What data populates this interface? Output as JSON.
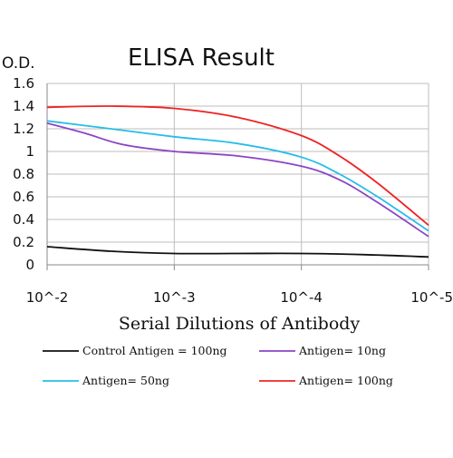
{
  "chart_data": {
    "type": "line",
    "title": "ELISA Result",
    "ylabel": "O.D.",
    "xlabel": "Serial Dilutions of Antibody",
    "x_categories": [
      "10^-2",
      "10^-3",
      "10^-4",
      "10^-5"
    ],
    "y_ticks": [
      "0",
      "0.2",
      "0.4",
      "0.6",
      "0.8",
      "1",
      "1.2",
      "1.4",
      "1.6"
    ],
    "ylim": [
      0,
      1.6
    ],
    "grid": true,
    "legend_position": "bottom",
    "series": [
      {
        "name": "Control Antigen = 100ng",
        "color": "#111111",
        "points": [
          [
            0,
            0.16
          ],
          [
            0.5,
            0.12
          ],
          [
            1,
            0.1
          ],
          [
            1.5,
            0.1
          ],
          [
            2,
            0.1
          ],
          [
            2.5,
            0.09
          ],
          [
            3,
            0.07
          ]
        ]
      },
      {
        "name": "Antigen= 10ng",
        "color": "#8c44c4",
        "points": [
          [
            0,
            1.25
          ],
          [
            0.3,
            1.16
          ],
          [
            0.6,
            1.06
          ],
          [
            1,
            1.0
          ],
          [
            1.5,
            0.96
          ],
          [
            2,
            0.87
          ],
          [
            2.3,
            0.75
          ],
          [
            2.6,
            0.55
          ],
          [
            3,
            0.25
          ]
        ]
      },
      {
        "name": "Antigen= 50ng",
        "color": "#27bde8",
        "points": [
          [
            0,
            1.27
          ],
          [
            0.5,
            1.2
          ],
          [
            1,
            1.13
          ],
          [
            1.5,
            1.07
          ],
          [
            2,
            0.95
          ],
          [
            2.3,
            0.8
          ],
          [
            2.6,
            0.6
          ],
          [
            3,
            0.3
          ]
        ]
      },
      {
        "name": "Antigen= 100ng",
        "color": "#ee2424",
        "points": [
          [
            0,
            1.39
          ],
          [
            0.5,
            1.4
          ],
          [
            1,
            1.38
          ],
          [
            1.5,
            1.3
          ],
          [
            2,
            1.14
          ],
          [
            2.3,
            0.96
          ],
          [
            2.6,
            0.72
          ],
          [
            3,
            0.35
          ]
        ]
      }
    ]
  }
}
